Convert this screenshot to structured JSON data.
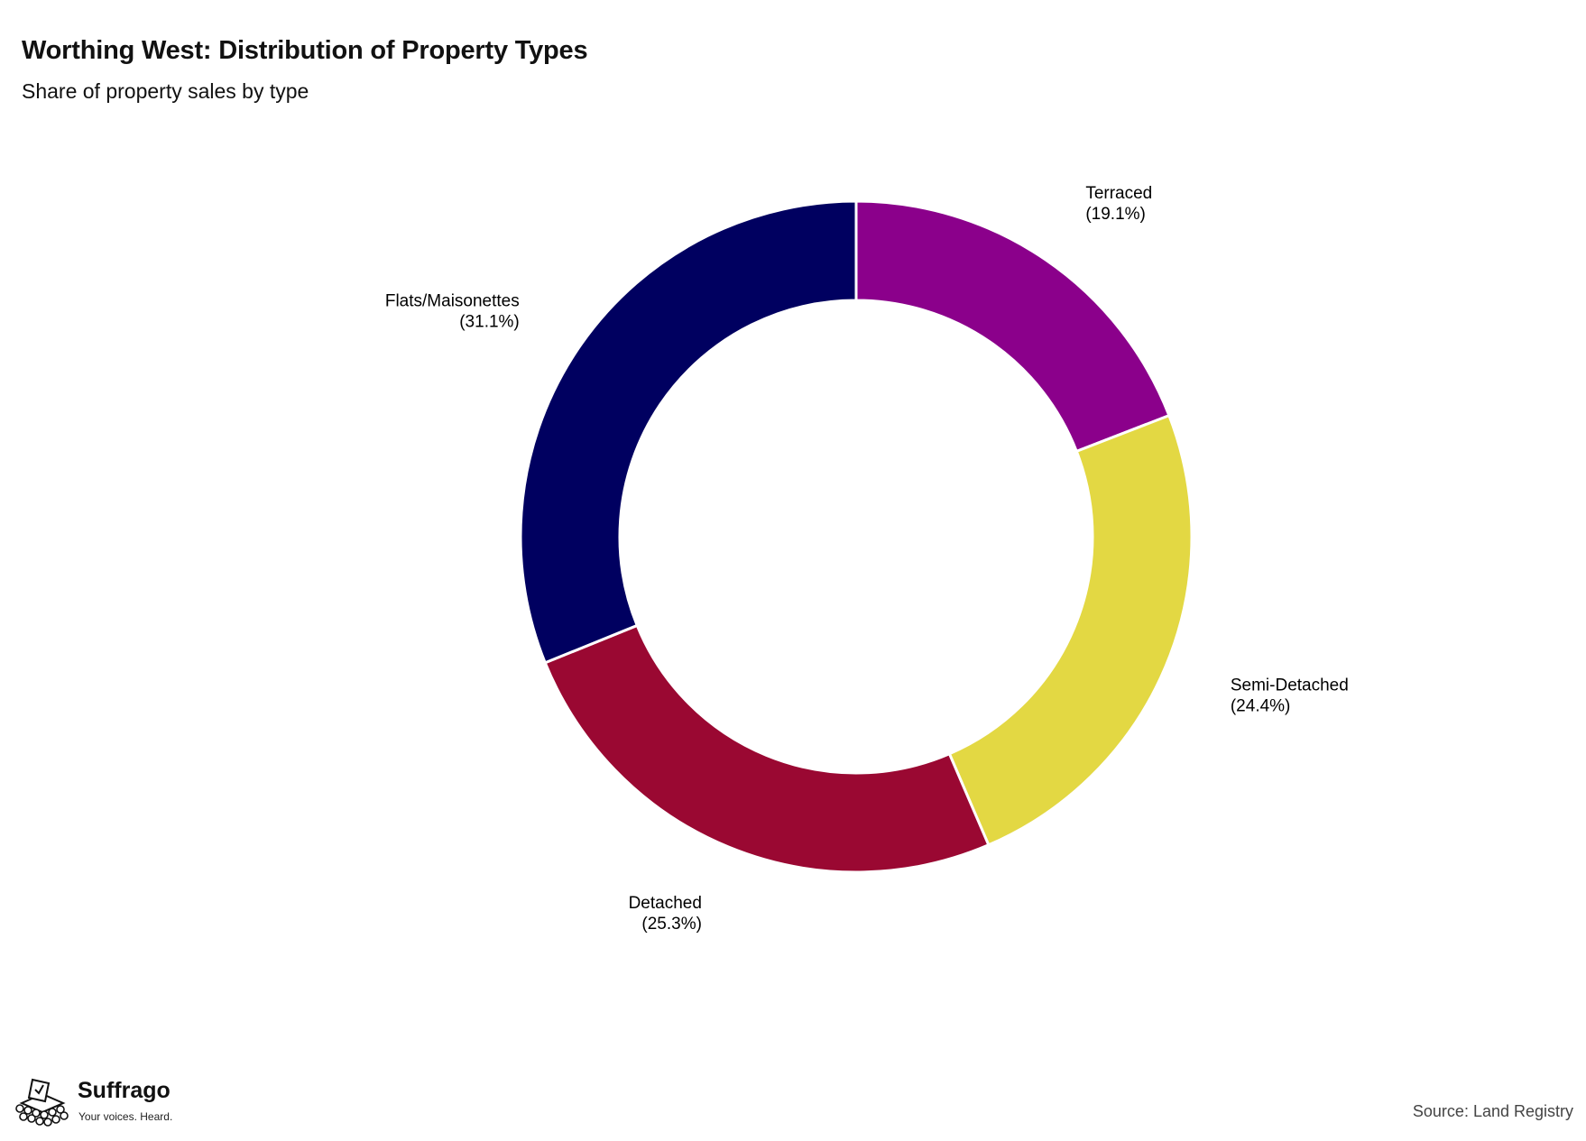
{
  "header": {
    "title": "Worthing West: Distribution of Property Types",
    "subtitle": "Share of property sales by type"
  },
  "footer": {
    "source": "Source: Land Registry",
    "brand_name": "Suffrago",
    "brand_tagline": "Your voices. Heard."
  },
  "chart_data": {
    "type": "pie",
    "donut": true,
    "title": "Worthing West: Distribution of Property Types",
    "subtitle": "Share of property sales by type",
    "start_angle_deg": 0,
    "direction": "clockwise",
    "slices": [
      {
        "label": "Terraced",
        "value": 19.1,
        "value_label": "(19.1%)",
        "color": "#8B008B"
      },
      {
        "label": "Semi-Detached",
        "value": 24.4,
        "value_label": "(24.4%)",
        "color": "#E3D843"
      },
      {
        "label": "Detached",
        "value": 25.3,
        "value_label": "(25.3%)",
        "color": "#9A0832"
      },
      {
        "label": "Flats/Maisonettes",
        "value": 31.1,
        "value_label": "(31.1%)",
        "color": "#000060"
      }
    ],
    "legend": "none"
  }
}
